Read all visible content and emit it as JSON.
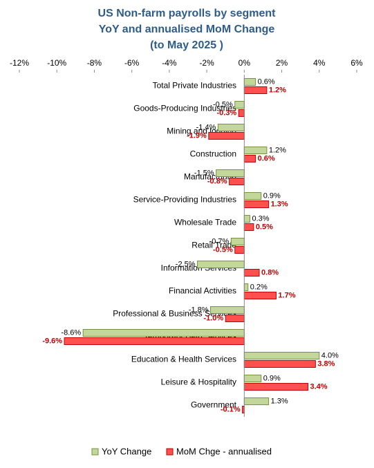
{
  "chart_data": {
    "type": "hbar",
    "title": [
      "US Non-farm payrolls by segment",
      "YoY and annualised MoM Change",
      "(to May 2025 )"
    ],
    "categories": [
      "Total Private Industries",
      "Goods-Producing Industries",
      "Mining and logging",
      "Construction",
      "Manufacturing",
      "Service-Providing Industries",
      "Wholesale Trade",
      "Retail Trade",
      "Information Services",
      "Financial Activities",
      "Professional & Business Services",
      "Temporary Help Services",
      "Education & Health Services",
      "Leisure & Hospitality",
      "Government"
    ],
    "series": [
      {
        "name": "YoY Change",
        "color": "#c4d79b",
        "stroke": "#76923c",
        "values": [
          0.6,
          -0.5,
          -1.4,
          1.2,
          -1.5,
          0.9,
          0.3,
          -0.7,
          -2.5,
          0.2,
          -1.8,
          -8.6,
          4.0,
          0.9,
          1.3
        ],
        "value_labels": [
          "0.6%",
          "-0.5%",
          "-1.4%",
          "1.2%",
          "-1.5%",
          "0.9%",
          "0.3%",
          "-0.7%",
          "-2.5%",
          "0.2%",
          "-1.8%",
          "-8.6%",
          "4.0%",
          "0.9%",
          "1.3%"
        ]
      },
      {
        "name": "MoM Chge - annualised",
        "color": "#ff5050",
        "stroke": "#c00000",
        "values": [
          1.2,
          -0.3,
          -1.9,
          0.6,
          -0.8,
          1.3,
          0.5,
          -0.5,
          0.8,
          1.7,
          -1.0,
          -9.6,
          3.8,
          3.4,
          -0.1
        ],
        "value_labels": [
          "1.2%",
          "-0.3%",
          "-1.9%",
          "0.6%",
          "-0.8%",
          "1.3%",
          "0.5%",
          "-0.5%",
          "0.8%",
          "1.7%",
          "-1.0%",
          "-9.6%",
          "3.8%",
          "3.4%",
          "-0.1%"
        ]
      }
    ],
    "xlim": [
      -12,
      6
    ],
    "xticks": [
      {
        "value": -12,
        "label": "-12%"
      },
      {
        "value": -10,
        "label": "-10%"
      },
      {
        "value": -8,
        "label": "-8%"
      },
      {
        "value": -6,
        "label": "-6%"
      },
      {
        "value": -4,
        "label": "-4%"
      },
      {
        "value": -2,
        "label": "-2%"
      },
      {
        "value": 0,
        "label": "0%"
      },
      {
        "value": 2,
        "label": "2%"
      },
      {
        "value": 4,
        "label": "4%"
      },
      {
        "value": 6,
        "label": "6%"
      }
    ],
    "legend": "bottom"
  }
}
